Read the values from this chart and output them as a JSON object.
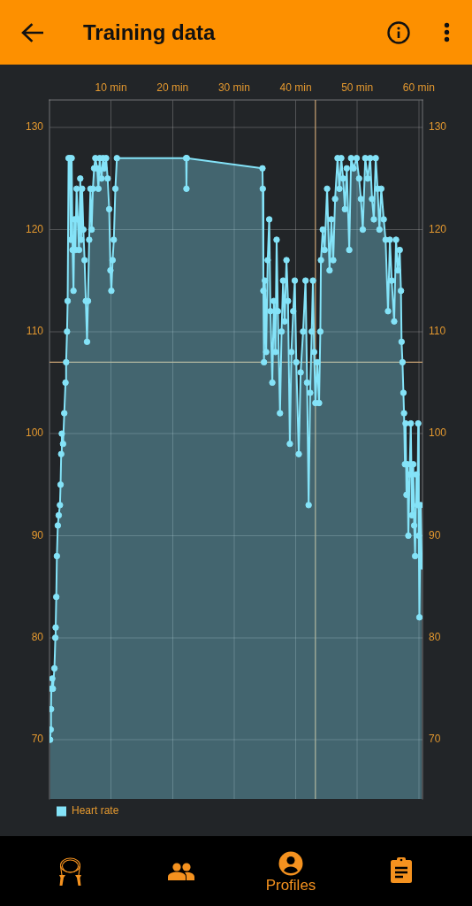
{
  "chart_data": {
    "type": "area",
    "title": "Training data",
    "x": [
      0.1,
      0.2,
      0.25,
      0.3,
      0.45,
      0.55,
      0.8,
      0.95,
      1.0,
      1.1,
      1.2,
      1.35,
      1.5,
      1.7,
      1.8,
      1.9,
      2.0,
      2.2,
      2.4,
      2.6,
      2.7,
      2.85,
      2.95,
      3.1,
      3.3,
      3.45,
      3.6,
      3.75,
      3.9,
      4.05,
      4.2,
      4.4,
      4.6,
      4.8,
      5.0,
      5.15,
      5.3,
      5.5,
      5.7,
      5.9,
      6.1,
      6.25,
      6.45,
      6.65,
      6.85,
      7.05,
      7.25,
      7.45,
      7.75,
      7.95,
      8.15,
      8.45,
      8.7,
      8.9,
      9.2,
      9.45,
      9.7,
      9.9,
      10.05,
      10.25,
      10.45,
      10.7,
      10.95,
      22.2,
      22.25,
      22.3,
      34.6,
      34.65,
      34.75,
      34.85,
      35.0,
      35.2,
      35.45,
      35.7,
      35.9,
      36.2,
      36.45,
      36.7,
      36.9,
      37.1,
      37.45,
      37.7,
      37.95,
      38.2,
      38.5,
      38.75,
      39.05,
      39.3,
      39.6,
      39.85,
      40.1,
      40.5,
      40.8,
      41.2,
      41.6,
      41.85,
      42.1,
      42.35,
      42.6,
      42.8,
      43.0,
      43.2,
      43.5,
      43.8,
      44.0,
      44.1,
      44.4,
      44.7,
      45.1,
      45.5,
      45.8,
      46.1,
      46.4,
      46.8,
      47.1,
      47.4,
      47.7,
      48.0,
      48.3,
      48.7,
      49.0,
      49.4,
      49.9,
      50.3,
      50.6,
      50.9,
      51.3,
      51.7,
      52.1,
      52.4,
      52.7,
      53.0,
      53.3,
      53.6,
      53.9,
      54.3,
      54.6,
      55.0,
      55.3,
      55.6,
      56.0,
      56.3,
      56.6,
      56.9,
      57.1,
      57.2,
      57.35,
      57.5,
      57.6,
      57.75,
      57.85,
      58.0,
      58.15,
      58.3,
      58.5,
      58.7,
      58.9,
      59.1,
      59.25,
      59.4,
      59.6,
      59.8,
      59.9,
      60.0,
      60.1,
      60.3,
      60.5
    ],
    "series": [
      {
        "name": "Heart rate",
        "color": "#84e3f8",
        "values": [
          70,
          71,
          73,
          75,
          76,
          75,
          77,
          80,
          81,
          84,
          88,
          91,
          92,
          93,
          95,
          98,
          100,
          99,
          102,
          105,
          107,
          110,
          113,
          127,
          127,
          119,
          127,
          118,
          114,
          121,
          118,
          124,
          121,
          118,
          125,
          119,
          124,
          120,
          117,
          113,
          109,
          113,
          119,
          124,
          120,
          124,
          126,
          127,
          126,
          124,
          127,
          125,
          127,
          126,
          127,
          125,
          122,
          116,
          114,
          117,
          119,
          124,
          127,
          127,
          124,
          127,
          126,
          124,
          114,
          107,
          115,
          108,
          117,
          121,
          112,
          105,
          113,
          108,
          119,
          112,
          102,
          110,
          115,
          111,
          117,
          113,
          99,
          108,
          112,
          115,
          107,
          98,
          106,
          110,
          115,
          105,
          93,
          104,
          110,
          115,
          108,
          103,
          107,
          103,
          110,
          117,
          120,
          118,
          124,
          116,
          121,
          117,
          123,
          127,
          124,
          127,
          125,
          122,
          126,
          118,
          127,
          126,
          127,
          125,
          123,
          120,
          127,
          125,
          127,
          123,
          121,
          127,
          124,
          120,
          124,
          121,
          119,
          112,
          119,
          115,
          111,
          119,
          116,
          118,
          114,
          109,
          107,
          104,
          102,
          97,
          101,
          94,
          97,
          90,
          96,
          101,
          92,
          97,
          91,
          88,
          96,
          93,
          101,
          90,
          82,
          93,
          87
        ]
      }
    ],
    "xlim": [
      0,
      60.6
    ],
    "xticks": [
      {
        "value": 10,
        "label": "10 min"
      },
      {
        "value": 20,
        "label": "20 min"
      },
      {
        "value": 30,
        "label": "30 min"
      },
      {
        "value": 40,
        "label": "40 min"
      },
      {
        "value": 50,
        "label": "50 min"
      },
      {
        "value": 60,
        "label": "60 min"
      }
    ],
    "ylim": [
      64.2,
      132.7
    ],
    "yticks": [
      70,
      80,
      90,
      100,
      110,
      120,
      130
    ],
    "y2lim": [
      64.2,
      132.7
    ],
    "y2ticks": [
      70,
      80,
      90,
      100,
      110,
      120,
      130
    ],
    "ref_lines": [
      {
        "axis": "x",
        "value": 43.2,
        "color": "#c9a374"
      },
      {
        "axis": "y",
        "value": 107,
        "color": "#c9a374"
      }
    ],
    "grid": true,
    "legend": "bottom left",
    "marker": "circle",
    "annotations": [
      "Profiles"
    ]
  }
}
